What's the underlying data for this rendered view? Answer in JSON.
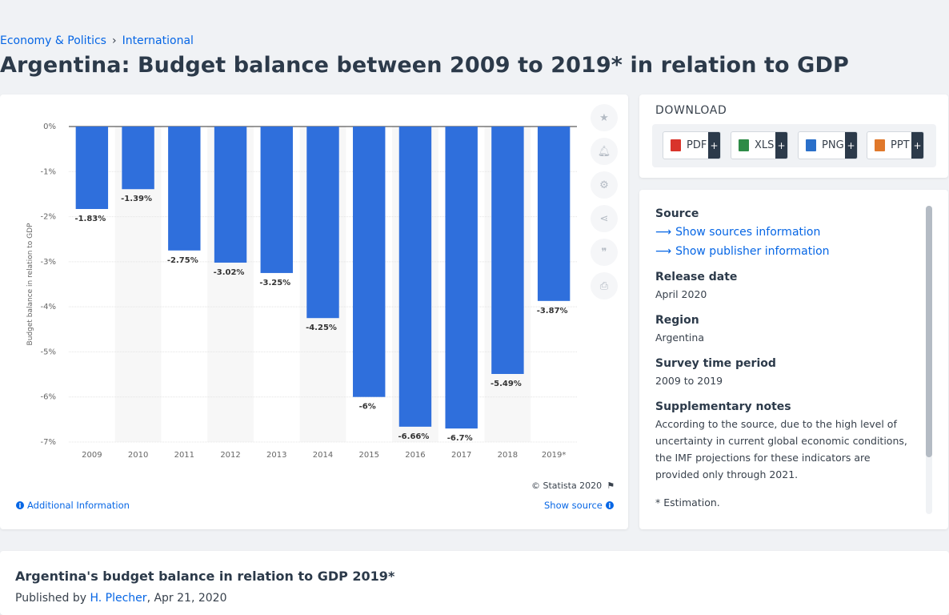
{
  "breadcrumb": {
    "items": [
      "Economy & Politics",
      "International"
    ],
    "separator": "›"
  },
  "page": {
    "title": "Argentina: Budget balance between 2009 to 2019* in relation to GDP"
  },
  "chart_data": {
    "type": "bar",
    "categories": [
      "2009",
      "2010",
      "2011",
      "2012",
      "2013",
      "2014",
      "2015",
      "2016",
      "2017",
      "2018",
      "2019*"
    ],
    "values": [
      -1.83,
      -1.39,
      -2.75,
      -3.02,
      -3.25,
      -4.25,
      -6,
      -6.66,
      -6.7,
      -5.49,
      -3.87
    ],
    "data_labels": [
      "-1.83%",
      "-1.39%",
      "-2.75%",
      "-3.02%",
      "-3.25%",
      "-4.25%",
      "-6%",
      "-6.66%",
      "-6.7%",
      "-5.49%",
      "-3.87%"
    ],
    "ylabel": "Budget balance in relation to GDP",
    "ylim": [
      -7,
      0
    ],
    "yticks": [
      0,
      -1,
      -2,
      -3,
      -4,
      -5,
      -6,
      -7
    ],
    "ytick_labels": [
      "0%",
      "-1%",
      "-2%",
      "-3%",
      "-4%",
      "-5%",
      "-6%",
      "-7%"
    ],
    "grid": true,
    "bar_color": "#2f6fdc"
  },
  "chart_footer": {
    "copyright": "© Statista 2020",
    "additional_info": "Additional Information",
    "show_source": "Show source"
  },
  "toolbar": {
    "icons": [
      "star-icon",
      "bell-icon",
      "gear-icon",
      "share-icon",
      "quote-icon",
      "print-icon"
    ]
  },
  "download": {
    "title": "DOWNLOAD",
    "buttons": [
      {
        "label": "PDF",
        "icon_color": "#d9342b"
      },
      {
        "label": "XLS",
        "icon_color": "#2e8b47"
      },
      {
        "label": "PNG",
        "icon_color": "#2a6fc9"
      },
      {
        "label": "PPT",
        "icon_color": "#e0782b"
      }
    ],
    "plus": "+"
  },
  "info": {
    "source_label": "Source",
    "show_sources": "Show sources information",
    "show_publisher": "Show publisher information",
    "release_label": "Release date",
    "release_value": "April 2020",
    "region_label": "Region",
    "region_value": "Argentina",
    "survey_label": "Survey time period",
    "survey_value": "2009 to 2019",
    "notes_label": "Supplementary notes",
    "notes_value": "According to the source, due to the high level of uncertainty in current global economic conditions, the IMF projections for these indicators are provided only through 2021.",
    "footnote": "* Estimation."
  },
  "bottom": {
    "title": "Argentina's budget balance in relation to GDP 2019*",
    "published_prefix": "Published by",
    "author": "H. Plecher",
    "date": ", Apr 21, 2020"
  }
}
